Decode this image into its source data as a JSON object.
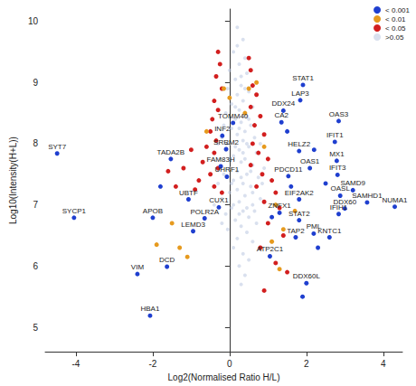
{
  "chart_data": {
    "type": "scatter",
    "x_label": "Log2(Normalised Ratio H/L)",
    "y_label": "Log10(Intensity(H+L))",
    "xlim": [
      -4.8,
      4.5
    ],
    "ylim": [
      4.6,
      10.2
    ],
    "xticks": [
      -4,
      -2,
      0,
      2,
      4
    ],
    "yticks": [
      5,
      6,
      7,
      8,
      9,
      10
    ],
    "grid": false,
    "legend": "top-right",
    "marker": "circle",
    "series": [
      {
        "name": "< 0.001",
        "color": "#1f3fcf",
        "x": [
          -4.49,
          -4.05,
          -2.0,
          -2.4,
          -1.63,
          -2.07,
          -0.95,
          -1.53,
          -0.23,
          -1.07,
          -0.28,
          -0.65,
          -0.07,
          -0.09,
          -0.19,
          0.09,
          1.4,
          1.91,
          1.84,
          1.35,
          2.84,
          1.81,
          2.74,
          2.79,
          2.81,
          2.09,
          1.53,
          3.21,
          2.88,
          3.58,
          4.3,
          3.0,
          2.84,
          1.81,
          1.3,
          1.81,
          1.72,
          2.19,
          2.6,
          1.05,
          2.0,
          1.5,
          2.2,
          1.6,
          2.5,
          1.1,
          2.3,
          1.9,
          -1.8
        ],
        "y": [
          7.84,
          6.79,
          6.79,
          5.87,
          5.99,
          5.19,
          6.57,
          7.75,
          7.63,
          7.09,
          6.96,
          6.78,
          7.46,
          7.91,
          8.13,
          8.34,
          8.54,
          8.96,
          8.71,
          8.35,
          8.37,
          7.88,
          8.03,
          7.72,
          7.49,
          7.6,
          7.47,
          7.24,
          7.15,
          7.04,
          6.97,
          6.94,
          6.85,
          7.09,
          6.87,
          6.75,
          6.47,
          6.53,
          6.47,
          6.16,
          5.72,
          8.2,
          7.9,
          7.3,
          7.35,
          6.8,
          6.3,
          5.5,
          7.3
        ],
        "labels": [
          "SYT7",
          "SYCP1",
          "APOB",
          "VIM",
          "DCD",
          "HBA1",
          "LEMD3",
          "TADA2B",
          "FAM83H",
          "UBTF",
          "CUX1",
          "POLR2A",
          "UHRF1",
          "SRRM2",
          "INF2",
          "TOMM40",
          "DDX24",
          "STAT1",
          "LAP3",
          "CA2",
          "OAS3",
          "HELZ2",
          "IFIT1",
          "MX1",
          "IFIT3",
          "OAS1",
          "PDCD11",
          "SAMD9",
          "OASL",
          "SAMHD1",
          "NUMA1",
          "DDX60",
          "IFIH1",
          "EIF2AK2",
          "ZNFX1",
          "STAT2",
          "TAP2",
          "PML",
          "KNTC1",
          "ATP2C1",
          "DDX60L",
          null,
          null,
          null,
          null,
          null,
          null,
          null,
          null
        ]
      },
      {
        "name": "< 0.01",
        "color": "#e69a1e",
        "x": [
          -0.15,
          0.0,
          0.5,
          0.7,
          0.4,
          -0.6,
          0.9,
          1.2,
          1.1,
          1.4,
          -1.5,
          -1.3,
          -1.9,
          -1.1,
          1.3,
          1.7
        ],
        "y": [
          8.9,
          8.75,
          8.9,
          9.0,
          8.5,
          8.2,
          7.95,
          7.0,
          6.4,
          6.6,
          6.7,
          6.3,
          6.35,
          6.15,
          5.95,
          6.9
        ]
      },
      {
        "name": "< 0.05",
        "color": "#d21f1f",
        "x": [
          -0.3,
          -0.25,
          -0.35,
          -0.2,
          -0.4,
          -0.3,
          -0.45,
          -0.5,
          -0.35,
          -0.6,
          -0.4,
          -0.7,
          -0.3,
          -0.5,
          -0.8,
          -0.4,
          -0.9,
          -1.2,
          -1.0,
          -0.2,
          0.5,
          0.55,
          0.6,
          0.7,
          0.55,
          0.8,
          0.65,
          0.9,
          0.6,
          0.75,
          1.0,
          0.55,
          0.85,
          1.1,
          0.7,
          1.2,
          0.9,
          1.3,
          1.0,
          1.4,
          0.8,
          1.2,
          0.9,
          1.5,
          -1.6,
          -1.4
        ],
        "y": [
          9.5,
          9.3,
          9.1,
          8.9,
          8.7,
          8.55,
          8.4,
          8.2,
          8.05,
          7.95,
          7.85,
          7.7,
          7.6,
          7.5,
          7.4,
          7.3,
          7.25,
          7.6,
          7.9,
          7.2,
          9.4,
          9.2,
          8.95,
          8.8,
          8.6,
          8.45,
          8.3,
          8.15,
          8.0,
          7.85,
          7.75,
          7.65,
          7.5,
          7.4,
          7.3,
          7.2,
          7.05,
          6.95,
          6.7,
          6.5,
          6.3,
          6.05,
          5.6,
          5.9,
          7.55,
          7.3
        ]
      },
      {
        "name": ">0.05",
        "color": "#b9c6e0",
        "x": [
          0.2,
          0.35,
          0.1,
          0.4,
          0.25,
          0.0,
          0.45,
          0.15,
          0.3,
          -0.05,
          0.5,
          0.2,
          0.35,
          0.05,
          0.6,
          0.25,
          -0.1,
          0.45,
          0.15,
          0.3,
          0.55,
          -0.15,
          0.05,
          0.4,
          0.2,
          0.65,
          -0.2,
          0.35,
          0.0,
          0.5,
          0.25,
          -0.1,
          0.7,
          0.1,
          0.4,
          -0.25,
          0.3,
          0.6,
          0.0,
          0.2,
          0.45,
          -0.15,
          0.75,
          0.1,
          0.35,
          -0.3,
          0.55,
          0.2,
          0.0,
          0.4,
          0.8,
          -0.2,
          0.25,
          0.6,
          0.05,
          0.35,
          -0.1,
          0.5,
          0.15,
          0.7,
          0.3,
          -0.05,
          0.45,
          0.2,
          0.6,
          0.1,
          0.35,
          0.5,
          0.25,
          0.4,
          0.3,
          0.15,
          0.45,
          0.3,
          0.1,
          0.55,
          0.25,
          0.4,
          -0.3,
          0.8,
          0.9,
          -0.4,
          0.65,
          0.15,
          0.5,
          0.05,
          0.35,
          0.2,
          0.3,
          0.0,
          0.6,
          -0.2,
          0.85,
          0.45,
          0.25
        ],
        "y": [
          9.9,
          9.7,
          9.5,
          9.4,
          9.3,
          9.2,
          9.15,
          9.05,
          8.95,
          8.9,
          8.85,
          8.8,
          8.7,
          8.65,
          8.6,
          8.55,
          8.5,
          8.45,
          8.4,
          8.35,
          8.3,
          8.3,
          8.25,
          8.2,
          8.15,
          8.1,
          8.1,
          8.05,
          8.0,
          7.95,
          7.9,
          7.9,
          7.85,
          7.8,
          7.75,
          7.75,
          7.7,
          7.65,
          7.6,
          7.55,
          7.5,
          7.5,
          7.45,
          7.4,
          7.35,
          7.35,
          7.3,
          7.25,
          7.2,
          7.15,
          7.1,
          7.1,
          7.05,
          7.0,
          6.95,
          6.9,
          6.85,
          6.8,
          6.75,
          6.7,
          6.65,
          6.6,
          6.55,
          6.45,
          6.4,
          6.3,
          6.2,
          6.1,
          6.0,
          5.85,
          5.7,
          8.6,
          8.0,
          7.45,
          7.0,
          7.55,
          8.25,
          8.9,
          8.0,
          8.0,
          7.6,
          7.0,
          6.9,
          7.95,
          8.4,
          7.35,
          7.85,
          9.6,
          9.1,
          7.75,
          7.2,
          6.7,
          7.35,
          6.95,
          6.85
        ]
      }
    ]
  }
}
